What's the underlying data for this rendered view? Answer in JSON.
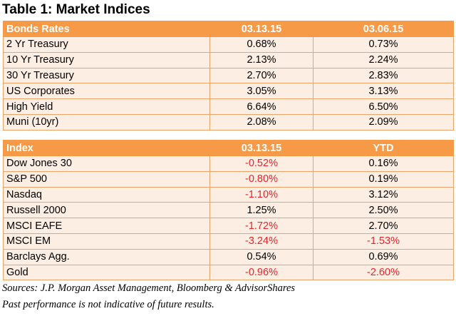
{
  "title": "Table 1: Market Indices",
  "bonds": {
    "headers": [
      "Bonds Rates",
      "03.13.15",
      "03.06.15"
    ],
    "rows": [
      {
        "name": "2 Yr Treasury",
        "v1": "0.68%",
        "v2": "0.73%"
      },
      {
        "name": "10 Yr Treasury",
        "v1": "2.13%",
        "v2": "2.24%"
      },
      {
        "name": "30 Yr Treasury",
        "v1": "2.70%",
        "v2": "2.83%"
      },
      {
        "name": "US Corporates",
        "v1": "3.05%",
        "v2": "3.13%"
      },
      {
        "name": "High Yield",
        "v1": "6.64%",
        "v2": "6.50%"
      },
      {
        "name": "Muni (10yr)",
        "v1": "2.08%",
        "v2": "2.09%"
      }
    ]
  },
  "indices": {
    "headers": [
      "Index",
      "03.13.15",
      "YTD"
    ],
    "rows": [
      {
        "name": "Dow Jones 30",
        "v1": "-0.52%",
        "v2": "0.16%"
      },
      {
        "name": "S&P 500",
        "v1": "-0.80%",
        "v2": "0.19%"
      },
      {
        "name": "Nasdaq",
        "v1": "-1.10%",
        "v2": "3.12%"
      },
      {
        "name": "Russell 2000",
        "v1": "1.25%",
        "v2": "2.50%"
      },
      {
        "name": "MSCI EAFE",
        "v1": "-1.72%",
        "v2": "2.70%"
      },
      {
        "name": "MSCI EM",
        "v1": "-3.24%",
        "v2": "-1.53%"
      },
      {
        "name": "Barclays Agg.",
        "v1": "0.54%",
        "v2": "0.69%"
      },
      {
        "name": "Gold",
        "v1": "-0.96%",
        "v2": "-2.60%"
      }
    ]
  },
  "colors": {
    "header_bg": "#f69a48",
    "row_bg": "#fdeee3",
    "negative": "#e8242a"
  },
  "notes": {
    "sources": "Sources: J.P. Morgan Asset Management, Bloomberg & AdvisorShares",
    "disclaimer": "Past performance is not indicative of future results."
  }
}
